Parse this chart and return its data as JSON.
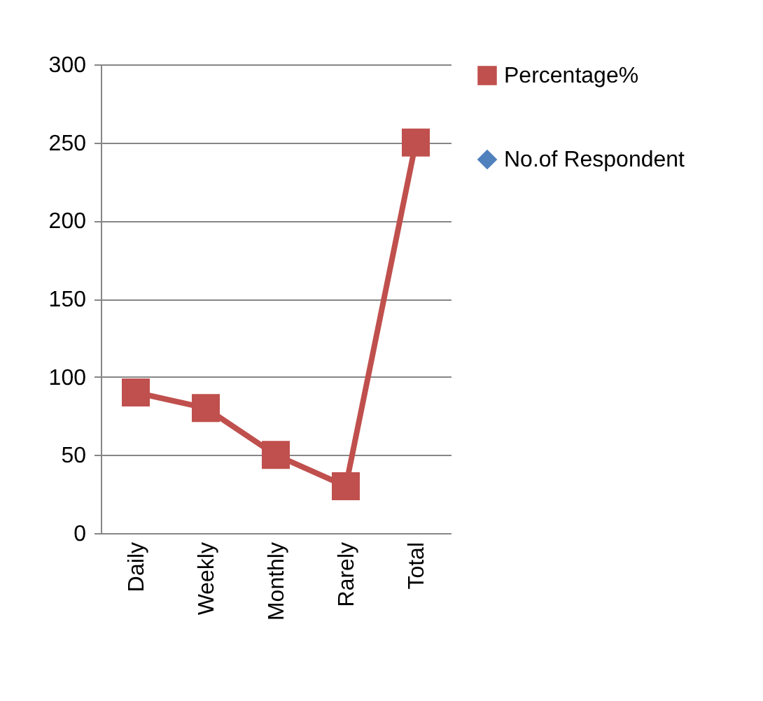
{
  "chart_data": {
    "type": "line",
    "categories": [
      "Daily",
      "Weekly",
      "Monthly",
      "Rarely",
      "Total"
    ],
    "series": [
      {
        "name": "Percentage%",
        "color": "#c0504d",
        "marker": "square",
        "values": [
          90,
          80,
          50,
          30,
          250
        ]
      },
      {
        "name": "No.of Respondent",
        "color": "#4f81bd",
        "marker": "diamond",
        "values": [
          null,
          null,
          null,
          null,
          null
        ]
      }
    ],
    "ylim": [
      0,
      300
    ],
    "yticks": [
      0,
      50,
      100,
      150,
      200,
      250,
      300
    ],
    "grid": "y",
    "legend": "right",
    "line_style": "solid"
  }
}
